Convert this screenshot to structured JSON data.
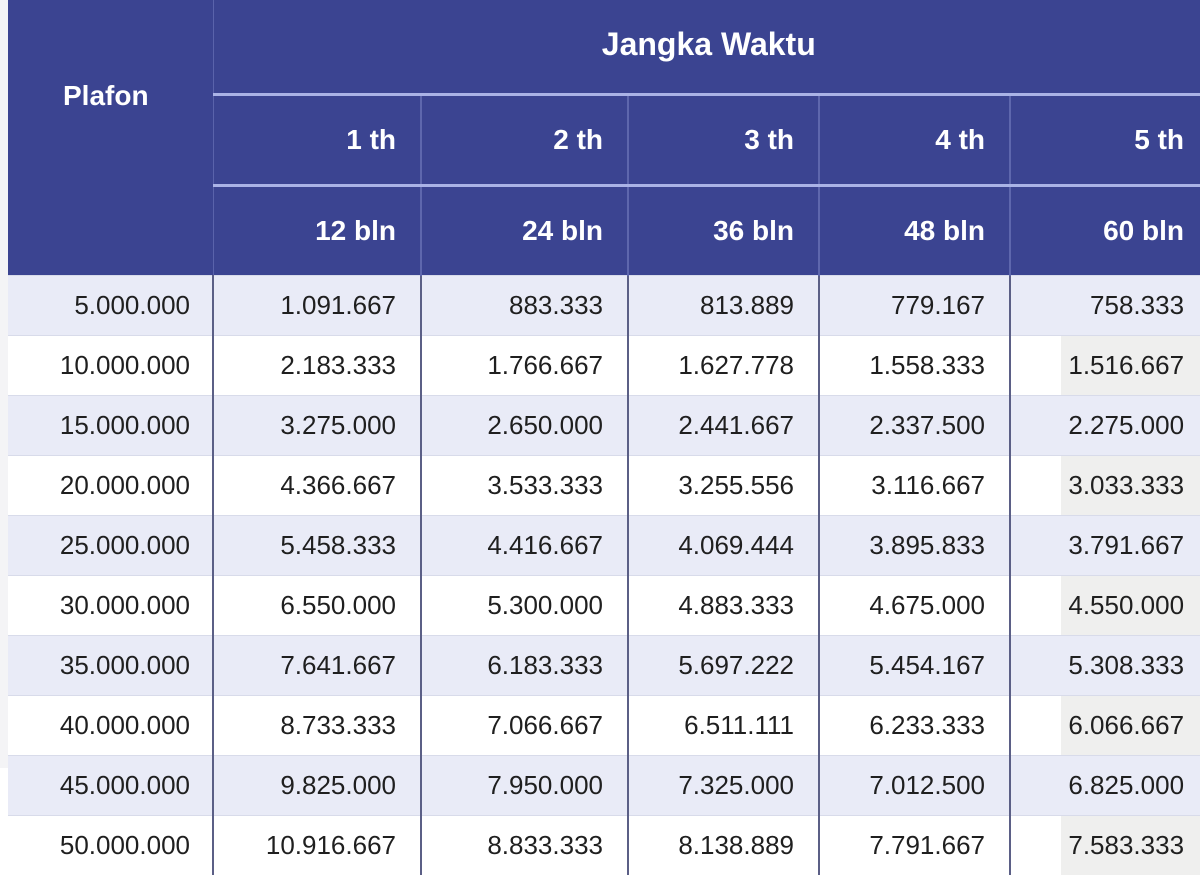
{
  "table": {
    "group_header": "Jangka Waktu",
    "row_header": "Plafon",
    "columns": [
      {
        "year": "1 th",
        "months": "12 bln"
      },
      {
        "year": "2 th",
        "months": "24 bln"
      },
      {
        "year": "3 th",
        "months": "36 bln"
      },
      {
        "year": "4 th",
        "months": "48 bln"
      },
      {
        "year": "5 th",
        "months": "60 bln"
      }
    ],
    "rows": [
      {
        "plafon": "5.000.000",
        "values": [
          "1.091.667",
          "883.333",
          "813.889",
          "779.167",
          "758.333"
        ]
      },
      {
        "plafon": "10.000.000",
        "values": [
          "2.183.333",
          "1.766.667",
          "1.627.778",
          "1.558.333",
          "1.516.667"
        ]
      },
      {
        "plafon": "15.000.000",
        "values": [
          "3.275.000",
          "2.650.000",
          "2.441.667",
          "2.337.500",
          "2.275.000"
        ]
      },
      {
        "plafon": "20.000.000",
        "values": [
          "4.366.667",
          "3.533.333",
          "3.255.556",
          "3.116.667",
          "3.033.333"
        ]
      },
      {
        "plafon": "25.000.000",
        "values": [
          "5.458.333",
          "4.416.667",
          "4.069.444",
          "3.895.833",
          "3.791.667"
        ]
      },
      {
        "plafon": "30.000.000",
        "values": [
          "6.550.000",
          "5.300.000",
          "4.883.333",
          "4.675.000",
          "4.550.000"
        ]
      },
      {
        "plafon": "35.000.000",
        "values": [
          "7.641.667",
          "6.183.333",
          "5.697.222",
          "5.454.167",
          "5.308.333"
        ]
      },
      {
        "plafon": "40.000.000",
        "values": [
          "8.733.333",
          "7.066.667",
          "6.511.111",
          "6.233.333",
          "6.066.667"
        ]
      },
      {
        "plafon": "45.000.000",
        "values": [
          "9.825.000",
          "7.950.000",
          "7.325.000",
          "7.012.500",
          "6.825.000"
        ]
      },
      {
        "plafon": "50.000.000",
        "values": [
          "10.916.667",
          "8.833.333",
          "8.138.889",
          "7.791.667",
          "7.583.333"
        ]
      }
    ]
  },
  "colors": {
    "header_bg": "#3b4491",
    "header_text": "#ffffff",
    "header_rule": "#aab3e6",
    "row_alt_bg": "#e9ebf7",
    "row_bg": "#ffffff",
    "cell_text": "#1f1f1f"
  }
}
